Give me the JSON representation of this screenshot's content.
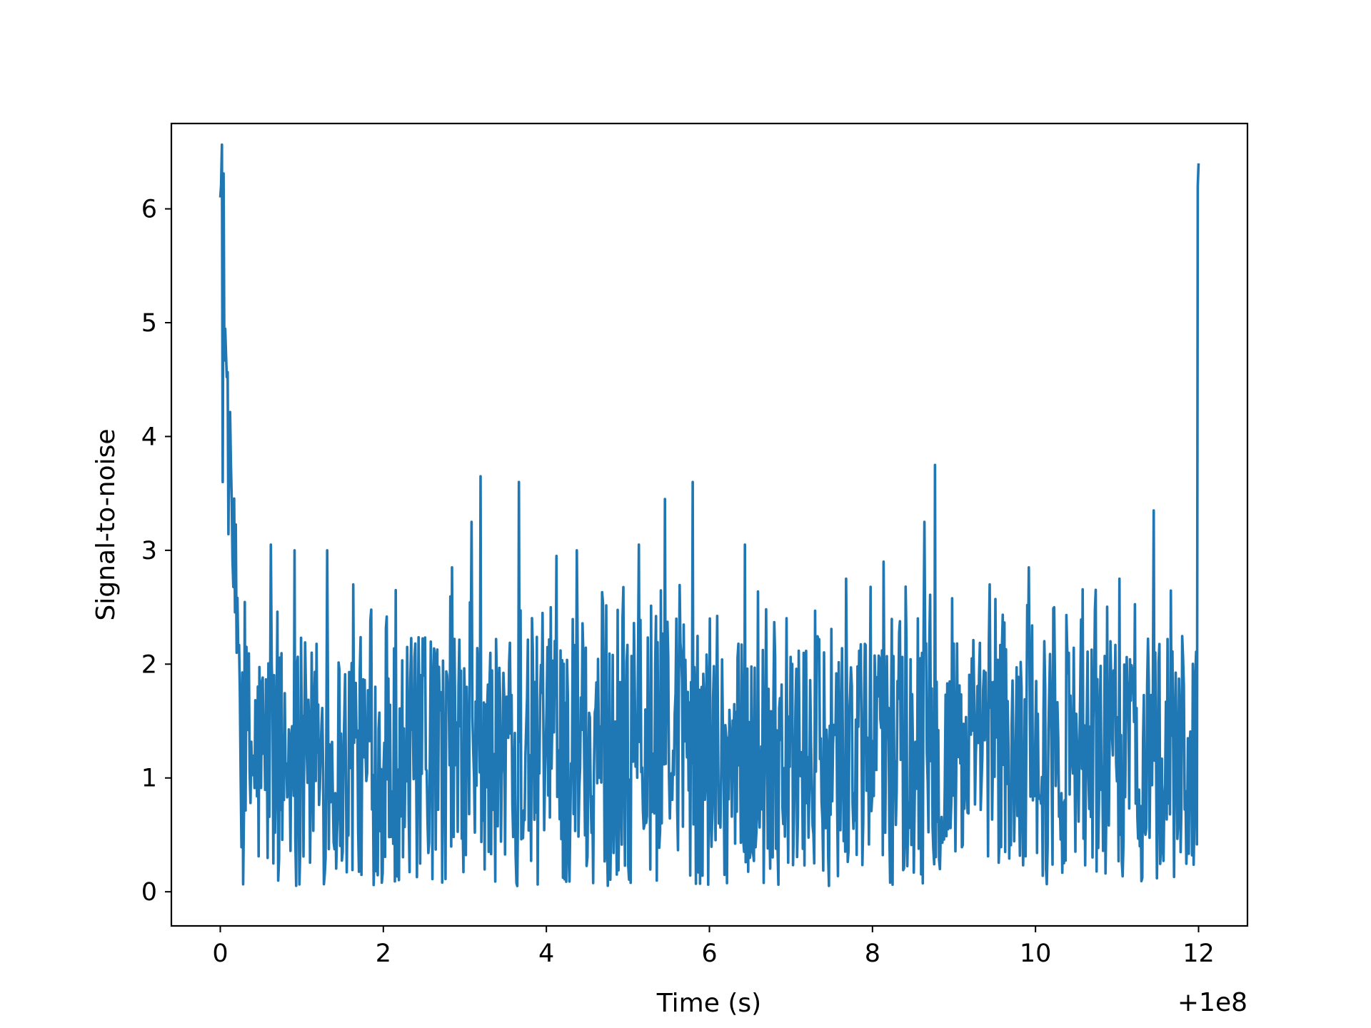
{
  "chart_data": {
    "type": "line",
    "title": "",
    "xlabel": "Time (s)",
    "ylabel": "Signal-to-noise",
    "x_offset_label": "+1e8",
    "xlim": [
      -0.6,
      12.6
    ],
    "ylim": [
      -0.3,
      6.75
    ],
    "xticks": [
      0,
      2,
      4,
      6,
      8,
      10,
      12
    ],
    "yticks": [
      0,
      1,
      2,
      3,
      4,
      5,
      6
    ],
    "grid": false,
    "legend": "none",
    "line_color": "#1f77b4",
    "series": [
      {
        "x_start": 0.0,
        "x_end": 12.0,
        "n_samples": 1200,
        "noise_seed": 12345,
        "anchors": [
          [
            0.0,
            6.1
          ],
          [
            0.03,
            3.6
          ],
          [
            0.13,
            3.75
          ],
          [
            0.2,
            2.1
          ],
          [
            0.62,
            3.05
          ],
          [
            0.91,
            3.0
          ],
          [
            1.31,
            3.0
          ],
          [
            1.63,
            2.7
          ],
          [
            2.15,
            2.65
          ],
          [
            2.84,
            2.85
          ],
          [
            3.08,
            3.25
          ],
          [
            3.19,
            3.65
          ],
          [
            3.66,
            3.6
          ],
          [
            4.12,
            2.95
          ],
          [
            4.37,
            3.0
          ],
          [
            5.13,
            3.05
          ],
          [
            5.45,
            3.45
          ],
          [
            5.79,
            3.6
          ],
          [
            6.44,
            3.05
          ],
          [
            7.68,
            2.75
          ],
          [
            8.14,
            2.9
          ],
          [
            8.64,
            3.25
          ],
          [
            8.77,
            3.75
          ],
          [
            9.44,
            2.7
          ],
          [
            9.92,
            2.85
          ],
          [
            10.23,
            2.5
          ],
          [
            11.03,
            2.75
          ],
          [
            11.45,
            3.35
          ],
          [
            11.81,
            2.05
          ],
          [
            12.0,
            6.4
          ]
        ]
      }
    ]
  }
}
